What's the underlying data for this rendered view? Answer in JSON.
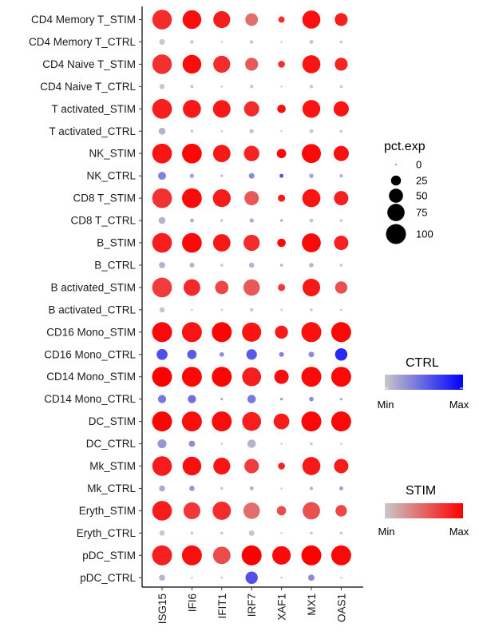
{
  "chart_data": {
    "type": "dotplot",
    "genes": [
      "ISG15",
      "IFI6",
      "IFIT1",
      "IRF7",
      "XAF1",
      "MX1",
      "OAS1"
    ],
    "groups": [
      "CD4 Memory T_STIM",
      "CD4 Memory T_CTRL",
      "CD4 Naive T_STIM",
      "CD4 Naive T_CTRL",
      "T activated_STIM",
      "T activated_CTRL",
      "NK_STIM",
      "NK_CTRL",
      "CD8 T_STIM",
      "CD8 T_CTRL",
      "B_STIM",
      "B_CTRL",
      "B activated_STIM",
      "B activated_CTRL",
      "CD16 Mono_STIM",
      "CD16 Mono_CTRL",
      "CD14 Mono_STIM",
      "CD14 Mono_CTRL",
      "DC_STIM",
      "DC_CTRL",
      "Mk_STIM",
      "Mk_CTRL",
      "Eryth_STIM",
      "Eryth_CTRL",
      "pDC_STIM",
      "pDC_CTRL"
    ],
    "pct_exp": [
      [
        96,
        88,
        72,
        40,
        10,
        82,
        42
      ],
      [
        8,
        3,
        1,
        3,
        1,
        4,
        2
      ],
      [
        96,
        88,
        72,
        42,
        12,
        82,
        42
      ],
      [
        7,
        3,
        1,
        3,
        1,
        3,
        2
      ],
      [
        98,
        82,
        78,
        58,
        18,
        80,
        58
      ],
      [
        12,
        2,
        1,
        5,
        1,
        4,
        2
      ],
      [
        98,
        98,
        76,
        60,
        22,
        92,
        58
      ],
      [
        16,
        5,
        2,
        8,
        4,
        5,
        3
      ],
      [
        98,
        98,
        80,
        52,
        13,
        82,
        52
      ],
      [
        12,
        4,
        2,
        5,
        2,
        4,
        2
      ],
      [
        98,
        98,
        76,
        66,
        18,
        90,
        52
      ],
      [
        10,
        6,
        2,
        7,
        2,
        5,
        2
      ],
      [
        98,
        70,
        45,
        68,
        13,
        78,
        38
      ],
      [
        7,
        1,
        1,
        3,
        1,
        2,
        1
      ],
      [
        100,
        100,
        100,
        93,
        43,
        100,
        100
      ],
      [
        30,
        22,
        5,
        28,
        6,
        8,
        38
      ],
      [
        100,
        100,
        100,
        90,
        52,
        100,
        100
      ],
      [
        17,
        17,
        2,
        18,
        2,
        5,
        2
      ],
      [
        100,
        100,
        100,
        90,
        62,
        100,
        100
      ],
      [
        20,
        10,
        1,
        18,
        1,
        2,
        1
      ],
      [
        96,
        88,
        72,
        53,
        12,
        82,
        52
      ],
      [
        9,
        7,
        2,
        4,
        1,
        3,
        4
      ],
      [
        97,
        72,
        84,
        68,
        22,
        76,
        33
      ],
      [
        7,
        2,
        2,
        8,
        1,
        2,
        2
      ],
      [
        100,
        100,
        77,
        100,
        86,
        100,
        100
      ],
      [
        9,
        1,
        1,
        38,
        1,
        10,
        1
      ]
    ],
    "avg_exp_scaled": [
      [
        0.78,
        0.94,
        0.86,
        0.45,
        0.78,
        0.92,
        0.84
      ],
      [
        0,
        0,
        0,
        0,
        0,
        0,
        0
      ],
      [
        0.76,
        0.94,
        0.78,
        0.56,
        0.76,
        0.9,
        0.82
      ],
      [
        0,
        0,
        0,
        0,
        0,
        0,
        0
      ],
      [
        0.85,
        0.88,
        0.88,
        0.78,
        0.92,
        0.9,
        0.9
      ],
      [
        0.1,
        0,
        0,
        0,
        0,
        0,
        0
      ],
      [
        0.9,
        0.96,
        0.88,
        0.82,
        0.96,
        0.95,
        0.92
      ],
      [
        0.35,
        0.15,
        0,
        0.3,
        0.6,
        0.15,
        0.1
      ],
      [
        0.75,
        0.95,
        0.86,
        0.56,
        0.86,
        0.9,
        0.84
      ],
      [
        0.1,
        0.1,
        0,
        0.1,
        0.1,
        0,
        0
      ],
      [
        0.85,
        0.95,
        0.88,
        0.78,
        0.96,
        0.95,
        0.84
      ],
      [
        0.1,
        0.1,
        0,
        0.1,
        0.1,
        0.1,
        0
      ],
      [
        0.7,
        0.8,
        0.65,
        0.55,
        0.72,
        0.88,
        0.6
      ],
      [
        0,
        0,
        0,
        0,
        0,
        0,
        0
      ],
      [
        0.96,
        0.9,
        0.98,
        0.9,
        0.86,
        0.92,
        0.96
      ],
      [
        0.6,
        0.55,
        0.3,
        0.55,
        0.35,
        0.3,
        0.8
      ],
      [
        1,
        0.96,
        0.98,
        0.85,
        0.94,
        0.95,
        0.96
      ],
      [
        0.4,
        0.45,
        0.1,
        0.4,
        0.2,
        0.3,
        0.1
      ],
      [
        0.98,
        0.94,
        0.94,
        0.85,
        0.86,
        0.96,
        0.96
      ],
      [
        0.25,
        0.3,
        0,
        0.1,
        0,
        0,
        0
      ],
      [
        0.86,
        0.92,
        0.9,
        0.7,
        0.82,
        0.88,
        0.86
      ],
      [
        0.15,
        0.25,
        0,
        0.1,
        0,
        0.1,
        0.2
      ],
      [
        0.86,
        0.72,
        0.78,
        0.45,
        0.62,
        0.6,
        0.65
      ],
      [
        0,
        0,
        0,
        0,
        0,
        0,
        0
      ],
      [
        0.84,
        0.92,
        0.62,
        1,
        0.95,
        1,
        0.96
      ],
      [
        0.1,
        0,
        0,
        0.6,
        0,
        0.3,
        0
      ]
    ],
    "size_legend": {
      "title": "pct.exp",
      "breaks": [
        0,
        25,
        50,
        75,
        100
      ]
    },
    "color_legends": [
      {
        "title": "CTRL",
        "min_label": "Min",
        "max_label": "Max",
        "low": "#c8c8c8",
        "high": "#0000ff"
      },
      {
        "title": "STIM",
        "min_label": "Min",
        "max_label": "Max",
        "low": "#c8c8c8",
        "high": "#ff0000"
      }
    ],
    "xlabel": "",
    "ylabel": "",
    "grid": false
  }
}
